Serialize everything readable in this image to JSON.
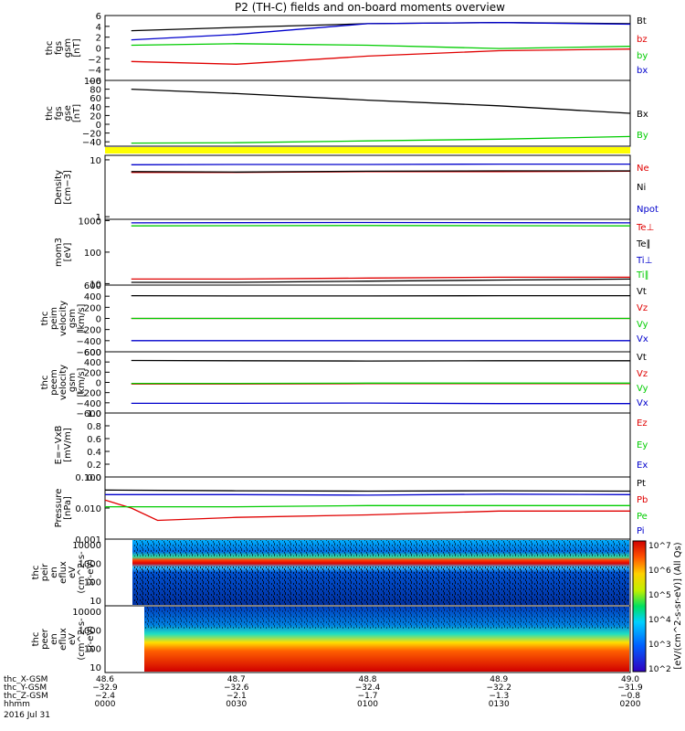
{
  "title": "P2 (TH-C) fields and on-board moments overview",
  "date_label": "2016 Jul 31",
  "colors": {
    "black": "#000000",
    "red": "#e00000",
    "green": "#00cc00",
    "blue": "#0000cc",
    "yellow": "#ffff00",
    "olive": "#808000"
  },
  "chart_data": [
    {
      "type": "line",
      "ylabel": [
        "thc",
        "fgs",
        "gsm",
        "[nT]"
      ],
      "yticks": [
        "6",
        "4",
        "2",
        "0",
        "−2",
        "−4",
        "−6"
      ],
      "ylim": [
        -6,
        6
      ],
      "series": [
        {
          "name": "Bt",
          "color": "black",
          "x": [
            48.62,
            48.7,
            48.8,
            48.9,
            49.0
          ],
          "values": [
            3.2,
            3.8,
            4.5,
            4.7,
            4.5
          ]
        },
        {
          "name": "bz",
          "color": "red",
          "x": [
            48.62,
            48.7,
            48.8,
            48.9,
            49.0
          ],
          "values": [
            -2.5,
            -3.0,
            -1.5,
            -0.5,
            -0.2
          ]
        },
        {
          "name": "by",
          "color": "green",
          "x": [
            48.62,
            48.7,
            48.8,
            48.9,
            49.0
          ],
          "values": [
            0.5,
            0.8,
            0.5,
            -0.1,
            0.3
          ]
        },
        {
          "name": "bx",
          "color": "blue",
          "x": [
            48.62,
            48.7,
            48.8,
            48.9,
            49.0
          ],
          "values": [
            1.5,
            2.5,
            4.5,
            4.7,
            4.4
          ]
        }
      ]
    },
    {
      "type": "line",
      "ylabel": [
        "thc",
        "fgs",
        "gse",
        "[nT]"
      ],
      "yticks": [
        "100",
        "80",
        "60",
        "40",
        "20",
        "0",
        "−20",
        "−40"
      ],
      "ylim": [
        -50,
        100
      ],
      "series": [
        {
          "name": "Bx",
          "color": "black",
          "x": [
            48.62,
            48.7,
            48.8,
            48.9,
            49.0
          ],
          "values": [
            80,
            70,
            55,
            42,
            25
          ]
        },
        {
          "name": "By",
          "color": "green",
          "x": [
            48.62,
            48.7,
            48.8,
            48.9,
            49.0
          ],
          "values": [
            -43,
            -42,
            -38,
            -34,
            -28
          ]
        }
      ]
    },
    {
      "type": "line",
      "scale": "log",
      "ylabel": [
        "Density",
        "[cm−3]"
      ],
      "yticks": [
        "10",
        "1"
      ],
      "ylim": [
        0.9,
        12
      ],
      "series": [
        {
          "name": "Ne",
          "color": "red",
          "x": [
            48.62,
            48.7,
            48.8,
            48.9,
            49.0
          ],
          "values": [
            6.0,
            6.0,
            6.2,
            6.2,
            6.3
          ]
        },
        {
          "name": "Ni",
          "color": "black",
          "x": [
            48.62,
            48.7,
            48.8,
            48.9,
            49.0
          ],
          "values": [
            6.2,
            6.1,
            6.3,
            6.4,
            6.4
          ]
        },
        {
          "name": "Npot",
          "color": "blue",
          "x": [
            48.62,
            48.7,
            48.8,
            48.9,
            49.0
          ],
          "values": [
            8.2,
            8.3,
            8.3,
            8.4,
            8.4
          ]
        }
      ]
    },
    {
      "type": "line",
      "scale": "log",
      "ylabel": [
        "mom3",
        "[eV]"
      ],
      "yticks": [
        "1000",
        "100",
        "10"
      ],
      "ylim": [
        9,
        1100
      ],
      "series": [
        {
          "name": "Te⊥",
          "color": "red",
          "x": [
            48.62,
            48.7,
            48.8,
            48.9,
            49.0
          ],
          "values": [
            14,
            14,
            15,
            16,
            16
          ]
        },
        {
          "name": "Te∥",
          "color": "black",
          "x": [
            48.62,
            48.7,
            48.8,
            48.9,
            49.0
          ],
          "values": [
            11,
            11,
            12,
            13,
            14
          ]
        },
        {
          "name": "Ti⊥",
          "color": "blue",
          "x": [
            48.62,
            48.7,
            48.8,
            48.9,
            49.0
          ],
          "values": [
            850,
            860,
            870,
            860,
            850
          ]
        },
        {
          "name": "Ti∥",
          "color": "green",
          "x": [
            48.62,
            48.7,
            48.8,
            48.9,
            49.0
          ],
          "values": [
            680,
            690,
            700,
            690,
            680
          ]
        }
      ]
    },
    {
      "type": "line",
      "ylabel": [
        "thc",
        "peim",
        "velocity",
        "gsm",
        "[km/s]"
      ],
      "yticks": [
        "600",
        "400",
        "200",
        "0",
        "−200",
        "−400",
        "−600"
      ],
      "ylim": [
        -600,
        600
      ],
      "series": [
        {
          "name": "Vt",
          "color": "black",
          "x": [
            48.62,
            48.7,
            48.8,
            48.9,
            49.0
          ],
          "values": [
            410,
            405,
            405,
            410,
            410
          ]
        },
        {
          "name": "Vz",
          "color": "red",
          "x": [
            48.62,
            48.7,
            48.8,
            48.9,
            49.0
          ],
          "values": [
            0,
            0,
            0,
            0,
            0
          ]
        },
        {
          "name": "Vy",
          "color": "green",
          "x": [
            48.62,
            48.7,
            48.8,
            48.9,
            49.0
          ],
          "values": [
            0,
            0,
            0,
            0,
            0
          ]
        },
        {
          "name": "Vx",
          "color": "blue",
          "x": [
            48.62,
            48.7,
            48.8,
            48.9,
            49.0
          ],
          "values": [
            -400,
            -400,
            -400,
            -400,
            -400
          ]
        }
      ]
    },
    {
      "type": "line",
      "ylabel": [
        "thc",
        "peem",
        "velocity",
        "gsm",
        "[km/s]"
      ],
      "yticks": [
        "600",
        "400",
        "200",
        "0",
        "−200",
        "−400",
        "−600"
      ],
      "ylim": [
        -600,
        600
      ],
      "series": [
        {
          "name": "Vt",
          "color": "black",
          "x": [
            48.62,
            48.7,
            48.8,
            48.9,
            49.0
          ],
          "values": [
            430,
            425,
            420,
            425,
            425
          ]
        },
        {
          "name": "Vz",
          "color": "red",
          "x": [
            48.62,
            48.7,
            48.8,
            48.9,
            49.0
          ],
          "values": [
            -30,
            -30,
            -25,
            -25,
            -25
          ]
        },
        {
          "name": "Vy",
          "color": "green",
          "x": [
            48.62,
            48.7,
            48.8,
            48.9,
            49.0
          ],
          "values": [
            -20,
            -20,
            -15,
            -15,
            -15
          ]
        },
        {
          "name": "Vx",
          "color": "blue",
          "x": [
            48.62,
            48.7,
            48.8,
            48.9,
            49.0
          ],
          "values": [
            -410,
            -410,
            -405,
            -415,
            -415
          ]
        }
      ]
    },
    {
      "type": "line",
      "ylabel": [
        "E=−VxB",
        "[mV/m]"
      ],
      "yticks": [
        "1.0",
        "0.8",
        "0.6",
        "0.4",
        "0.2",
        "0.0"
      ],
      "ylim": [
        0,
        1
      ],
      "series": [
        {
          "name": "Ez",
          "color": "red",
          "x": [],
          "values": []
        },
        {
          "name": "Ey",
          "color": "green",
          "x": [],
          "values": []
        },
        {
          "name": "Ex",
          "color": "blue",
          "x": [],
          "values": []
        }
      ]
    },
    {
      "type": "line",
      "scale": "log",
      "ylabel": [
        "Pressure",
        "[nPa]"
      ],
      "yticks": [
        "0.100",
        "0.010",
        "0.001"
      ],
      "ylim": [
        0.001,
        0.1
      ],
      "series": [
        {
          "name": "Pt",
          "color": "black",
          "x": [
            48.6,
            48.7,
            48.8,
            48.9,
            49.0
          ],
          "values": [
            0.038,
            0.036,
            0.035,
            0.036,
            0.035
          ]
        },
        {
          "name": "Pb",
          "color": "red",
          "x": [
            48.6,
            48.62,
            48.64,
            48.7,
            48.8,
            48.9,
            49.0
          ],
          "values": [
            0.018,
            0.01,
            0.004,
            0.005,
            0.006,
            0.008,
            0.008
          ]
        },
        {
          "name": "Pe",
          "color": "green",
          "x": [
            48.6,
            48.7,
            48.8,
            48.9,
            49.0
          ],
          "values": [
            0.011,
            0.011,
            0.012,
            0.012,
            0.012
          ]
        },
        {
          "name": "Pi",
          "color": "blue",
          "x": [
            48.6,
            48.7,
            48.8,
            48.9,
            49.0
          ],
          "values": [
            0.027,
            0.027,
            0.026,
            0.028,
            0.027
          ]
        }
      ]
    },
    {
      "type": "heatmap",
      "ylabel": [
        "thc",
        "peir",
        "en",
        "eflux",
        "eV",
        "(cm^2-s-",
        "sr-eV)"
      ],
      "yticks": [
        "10000",
        "1000",
        "100",
        "10"
      ]
    },
    {
      "type": "heatmap",
      "ylabel": [
        "thc",
        "peer",
        "en",
        "eflux",
        "eV",
        "(cm^2-s-",
        "sr-eV)"
      ],
      "yticks": [
        "10000",
        "1000",
        "100",
        "10"
      ]
    }
  ],
  "colorbar": {
    "label": "[eV/(cm^2-s-sr-eV)] (All Qs)",
    "ticks": [
      "10^7",
      "10^6",
      "10^5",
      "10^4",
      "10^3",
      "10^2"
    ]
  },
  "x_axis": {
    "tick_label_rows": [
      "thc_X-GSM",
      "thc_Y-GSM",
      "thc_Z-GSM",
      "hhmm"
    ],
    "ticks": [
      {
        "x": 48.6,
        "rows": [
          "48.6",
          "−32.9",
          "−2.4",
          "0000"
        ]
      },
      {
        "x": 48.7,
        "rows": [
          "48.7",
          "−32.6",
          "−2.1",
          "0030"
        ]
      },
      {
        "x": 48.8,
        "rows": [
          "48.8",
          "−32.4",
          "−1.7",
          "0100"
        ]
      },
      {
        "x": 48.9,
        "rows": [
          "48.9",
          "−32.2",
          "−1.3",
          "0130"
        ]
      },
      {
        "x": 49.0,
        "rows": [
          "49.0",
          "−31.9",
          "−0.8",
          "0200"
        ]
      }
    ],
    "xlim": [
      48.6,
      49.0
    ]
  }
}
